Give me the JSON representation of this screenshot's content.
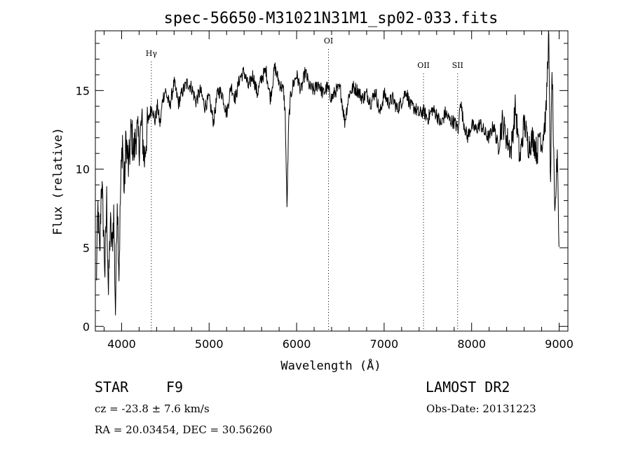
{
  "chart_data": {
    "type": "line",
    "title": "spec-56650-M31021N31M1_sp02-033.fits",
    "xlabel": "Wavelength (Å)",
    "ylabel": "Flux (relative)",
    "xlim": [
      3700,
      9100
    ],
    "ylim": [
      -0.3,
      18.8
    ],
    "x_ticks": [
      4000,
      5000,
      6000,
      7000,
      8000,
      9000
    ],
    "y_ticks": [
      0,
      5,
      10,
      15
    ],
    "grid": false,
    "lines": [
      {
        "label": "Hγ",
        "x": 4340
      },
      {
        "label": "OI",
        "x": 6364
      },
      {
        "label": "OII",
        "x": 7450
      },
      {
        "label": "SII",
        "x": 7840
      }
    ],
    "series": [
      {
        "x": [
          3710,
          3730,
          3750,
          3770,
          3790,
          3810,
          3830,
          3850,
          3870,
          3890,
          3910,
          3930,
          3950,
          3970,
          3990,
          4010,
          4030,
          4050,
          4080,
          4110,
          4140,
          4170,
          4200,
          4230,
          4260,
          4290,
          4320,
          4350,
          4380,
          4410,
          4440,
          4470,
          4500,
          4550,
          4600,
          4650,
          4700,
          4750,
          4800,
          4850,
          4900,
          4950,
          5000,
          5050,
          5100,
          5150,
          5200,
          5250,
          5300,
          5350,
          5400,
          5450,
          5500,
          5550,
          5600,
          5650,
          5700,
          5750,
          5800,
          5850,
          5870,
          5890,
          5910,
          5930,
          5950,
          6000,
          6050,
          6100,
          6150,
          6200,
          6250,
          6300,
          6350,
          6400,
          6450,
          6500,
          6550,
          6600,
          6650,
          6700,
          6750,
          6800,
          6850,
          6900,
          6950,
          7000,
          7050,
          7100,
          7150,
          7200,
          7250,
          7300,
          7350,
          7400,
          7450,
          7500,
          7550,
          7600,
          7650,
          7700,
          7750,
          7800,
          7850,
          7870,
          7900,
          7950,
          8000,
          8050,
          8100,
          8150,
          8200,
          8250,
          8300,
          8350,
          8400,
          8450,
          8500,
          8550,
          8600,
          8650,
          8700,
          8750,
          8780,
          8800,
          8850,
          8880,
          8900,
          8920,
          8950,
          8980,
          9000
        ],
        "y": [
          2.5,
          7.5,
          4.2,
          9.5,
          6.8,
          3.5,
          8.0,
          2.0,
          6.5,
          5.0,
          7.2,
          1.0,
          8.5,
          3.5,
          9.0,
          12.0,
          8.5,
          12.0,
          10.0,
          12.5,
          11.0,
          12.5,
          11.5,
          13.0,
          10.5,
          12.5,
          13.5,
          14.0,
          13.0,
          14.0,
          12.8,
          14.5,
          15.0,
          14.0,
          15.5,
          14.2,
          15.0,
          15.5,
          15.2,
          14.3,
          15.0,
          14.0,
          14.5,
          13.0,
          15.0,
          14.8,
          13.5,
          15.3,
          14.5,
          15.8,
          16.2,
          15.2,
          16.0,
          14.8,
          15.8,
          16.3,
          14.5,
          16.5,
          15.5,
          15.0,
          13.5,
          7.5,
          13.0,
          14.5,
          15.2,
          16.0,
          15.0,
          16.2,
          15.2,
          15.0,
          15.5,
          14.8,
          15.2,
          14.5,
          15.0,
          15.1,
          13.0,
          14.8,
          15.2,
          15.0,
          14.5,
          14.8,
          14.2,
          15.0,
          13.5,
          14.8,
          14.2,
          14.5,
          13.8,
          14.3,
          15.0,
          14.0,
          13.9,
          13.5,
          13.7,
          13.2,
          13.8,
          13.5,
          12.8,
          13.6,
          13.1,
          13.0,
          12.5,
          14.5,
          13.2,
          12.0,
          12.8,
          12.5,
          12.9,
          12.3,
          12.0,
          12.8,
          11.5,
          13.0,
          12.0,
          11.2,
          14.0,
          10.5,
          13.0,
          11.5,
          12.0,
          11.0,
          12.5,
          11.5,
          13.5,
          18.8,
          9.0,
          16.5,
          6.5,
          11.5,
          4.0
        ]
      }
    ]
  },
  "info": {
    "object_type": "STAR",
    "subclass": "F9",
    "survey": "LAMOST DR2",
    "cz": "cz = -23.8 ± 7.6 km/s",
    "obs_date": "Obs-Date: 20131223",
    "coords": "RA =  20.03454, DEC =  30.56260"
  }
}
